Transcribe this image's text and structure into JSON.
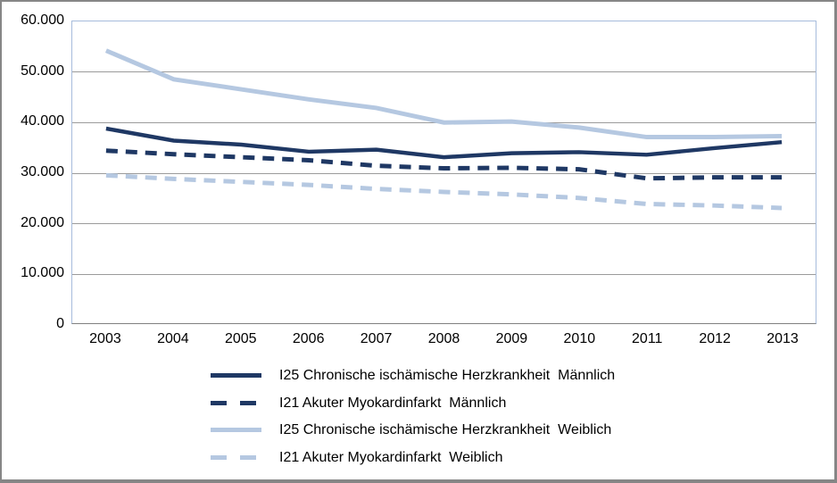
{
  "chart_data": {
    "type": "line",
    "title": "",
    "x_categories": [
      "2003",
      "2004",
      "2005",
      "2006",
      "2007",
      "2008",
      "2009",
      "2010",
      "2011",
      "2012",
      "2013"
    ],
    "series": [
      {
        "id": "i25-chronische-ischaemische-herzkrankheit-maennlich",
        "name": "I25 Chronische ischämische Herzkrankheit  Männlich",
        "color": "#1F3864",
        "dash": "solid",
        "values": [
          38700,
          36300,
          35500,
          34100,
          34500,
          33000,
          33800,
          34000,
          33500,
          34800,
          36000
        ]
      },
      {
        "id": "i21-akuter-myokardinfarkt-maennlich",
        "name": "I21 Akuter Myokardinfarkt  Männlich",
        "color": "#1F3864",
        "dash": "dashed",
        "values": [
          34300,
          33600,
          33000,
          32400,
          31300,
          30800,
          30900,
          30600,
          28800,
          29000,
          29000
        ]
      },
      {
        "id": "i25-chronische-ischaemische-herzkrankheit-weiblich",
        "name": "I25 Chronische ischämische Herzkrankheit  Weiblich",
        "color": "#B5C8E1",
        "dash": "solid",
        "values": [
          54200,
          48500,
          46500,
          44500,
          42800,
          39900,
          40100,
          38900,
          37000,
          37000,
          37200
        ]
      },
      {
        "id": "i21-akuter-myokardinfarkt-weiblich",
        "name": "I21 Akuter Myokardinfarkt  Weiblich",
        "color": "#B5C8E1",
        "dash": "dashed",
        "values": [
          29400,
          28700,
          28100,
          27500,
          26700,
          26100,
          25600,
          24900,
          23700,
          23400,
          22900
        ]
      }
    ],
    "ylim": [
      0,
      60000
    ],
    "ytick_values": [
      0,
      10000,
      20000,
      30000,
      40000,
      50000,
      60000
    ],
    "ytick_labels": [
      "0",
      "10.000",
      "20.000",
      "30.000",
      "40.000",
      "50.000",
      "60.000"
    ],
    "grid": true,
    "legend_position": "bottom"
  },
  "colors": {
    "male_navy": "#1F3864",
    "female_light_blue": "#B5C8E1",
    "gridline": "#9B9B9B",
    "axis_line": "#808080",
    "plot_border": "#A7BCDC",
    "frame_border": "#868686",
    "background": "#FFFFFF",
    "text": "#000000"
  }
}
